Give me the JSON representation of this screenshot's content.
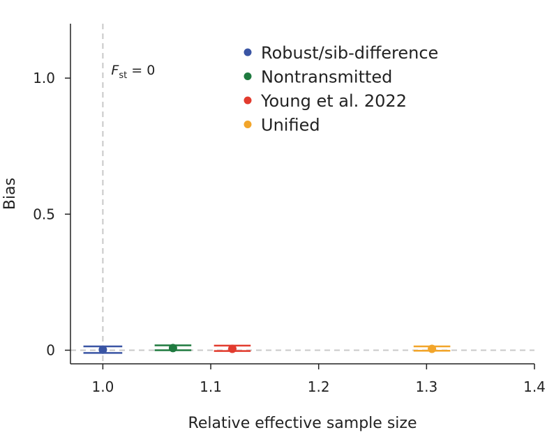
{
  "chart_data": {
    "type": "scatter",
    "title": "",
    "xlabel": "Relative effective sample size",
    "ylabel": "Bias",
    "xlim": [
      0.97,
      1.4
    ],
    "ylim": [
      -0.05,
      1.2
    ],
    "x_ticks": [
      1.0,
      1.1,
      1.2,
      1.3,
      1.4
    ],
    "x_tick_labels": [
      "1.0",
      "1.1",
      "1.2",
      "1.3",
      "1.4"
    ],
    "y_ticks": [
      0,
      0.5,
      1.0
    ],
    "y_tick_labels": [
      "0",
      "0.5",
      "1.0"
    ],
    "grid": false,
    "legend_position": "top-center",
    "reference_lines": {
      "vertical_x": 1.0,
      "horizontal_y": 0,
      "style": "dashed",
      "color": "#c8c8c8"
    },
    "annotation": {
      "italic": "F",
      "subscript": "st",
      "text": " = 0"
    },
    "series": [
      {
        "name": "Robust/sib-difference",
        "color": "#3a55a4",
        "x": 1.0,
        "y": 0.002,
        "y_err_low": -0.01,
        "y_err_high": 0.014,
        "x_err": 0.018
      },
      {
        "name": "Nontransmitted",
        "color": "#1f7a3f",
        "x": 1.065,
        "y": 0.008,
        "y_err_low": 0.0,
        "y_err_high": 0.018,
        "x_err": 0.017
      },
      {
        "name": "Young et al. 2022",
        "color": "#e23b2e",
        "x": 1.12,
        "y": 0.005,
        "y_err_low": -0.003,
        "y_err_high": 0.017,
        "x_err": 0.017
      },
      {
        "name": "Unified",
        "color": "#f2a52a",
        "x": 1.305,
        "y": 0.005,
        "y_err_low": -0.002,
        "y_err_high": 0.014,
        "x_err": 0.017
      }
    ]
  }
}
